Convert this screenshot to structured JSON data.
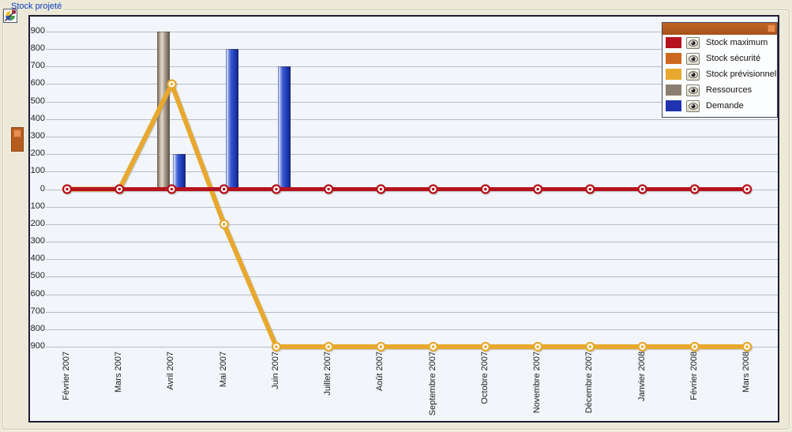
{
  "window": {
    "group_title": "Stock projeté"
  },
  "colors": {
    "page_background": "#ece9d8",
    "chart_background": "#f2f5f9",
    "frame_border": "#1e1e30",
    "gridline": "#b6bec8",
    "legend_header": "#b05a1e",
    "handle_orange": "#b55d1f",
    "title_blue": "#0a3fc1"
  },
  "icons": {
    "title_icon": "chart-properties-icon",
    "legend_collapse": "legend-collapse-button",
    "side_handle": "collapsed-panel-handle",
    "visibility": "eye-icon"
  },
  "legend": {
    "items": [
      {
        "label": "Stock maximum",
        "color": "#b5131d"
      },
      {
        "label": "Stock sécurité",
        "color": "#cc671d"
      },
      {
        "label": "Stock prévisionnel",
        "color": "#e7a82d"
      },
      {
        "label": "Ressources",
        "color": "#8a7e70"
      },
      {
        "label": "Demande",
        "color": "#2033b0"
      }
    ]
  },
  "chart_data": {
    "type": "combo",
    "title": "Stock projeté",
    "grid": "horizontal",
    "legend_position": "top-right",
    "categories": [
      "Février 2007",
      "Mars 2007",
      "Avril 2007",
      "Mai 2007",
      "Juin 2007",
      "Juillet 2007",
      "Août 2007",
      "Septembre 2007",
      "Octobre 2007",
      "Novembre 2007",
      "Décembre 2007",
      "Janvier 2008",
      "Février 2008",
      "Mars 2008"
    ],
    "y_axis": {
      "min": -900,
      "max": 900,
      "step": 100
    },
    "series": [
      {
        "name": "Stock maximum",
        "slug": "maximum",
        "type": "line",
        "color": "#b5131d",
        "values": [
          0,
          0,
          0,
          0,
          0,
          0,
          0,
          0,
          0,
          0,
          0,
          0,
          0,
          0
        ]
      },
      {
        "name": "Stock sécurité",
        "slug": "securite",
        "type": "line",
        "color": "#cc671d",
        "values": [
          0,
          0,
          0,
          0,
          0,
          0,
          0,
          0,
          0,
          0,
          0,
          0,
          0,
          0
        ]
      },
      {
        "name": "Stock prévisionnel",
        "slug": "previsionnel",
        "type": "line",
        "color": "#e7a82d",
        "values": [
          0,
          0,
          600,
          -200,
          -900,
          -900,
          -900,
          -900,
          -900,
          -900,
          -900,
          -900,
          -900,
          -900
        ]
      },
      {
        "name": "Ressources",
        "slug": "ressources",
        "type": "bar",
        "color": "#8a7e70",
        "values": [
          null,
          null,
          900,
          null,
          null,
          null,
          null,
          null,
          null,
          null,
          null,
          null,
          null,
          null
        ]
      },
      {
        "name": "Demande",
        "slug": "demande",
        "type": "bar",
        "color": "#2033b0",
        "values": [
          null,
          null,
          200,
          800,
          700,
          null,
          null,
          null,
          null,
          null,
          null,
          null,
          null,
          null
        ]
      }
    ]
  }
}
